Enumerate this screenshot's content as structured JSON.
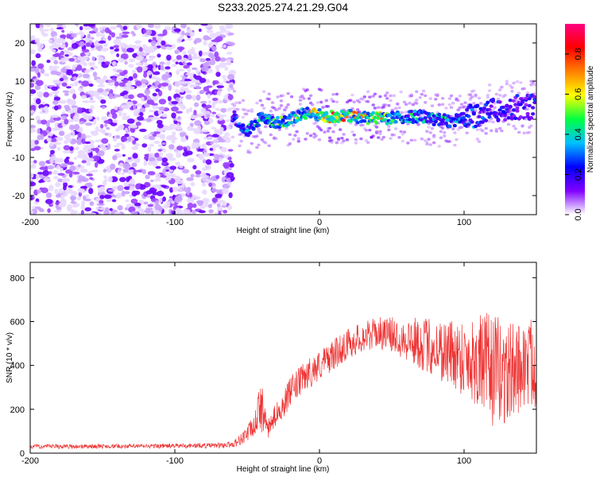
{
  "title": "S233.2025.274.21.29.G04",
  "chart_data": [
    {
      "type": "heatmap",
      "name": "spectrogram",
      "xlabel": "Height of straight line (km)",
      "ylabel": "Frequency (Hz)",
      "xlim": [
        -200,
        150
      ],
      "ylim": [
        -25,
        25
      ],
      "xticks": [
        -200,
        -100,
        0,
        100
      ],
      "yticks": [
        -20,
        -10,
        0,
        10,
        20
      ],
      "colorbar": {
        "label": "Normalized spectral amplitude",
        "range": [
          0.0,
          0.95
        ],
        "ticks": [
          0.0,
          0.2,
          0.4,
          0.6,
          0.8
        ],
        "colormap": [
          "#ffffff",
          "#8000ff",
          "#0000ff",
          "#00c0ff",
          "#00ff40",
          "#ffff00",
          "#ff8000",
          "#ff0000",
          "#ff0080"
        ]
      },
      "noise_region_x": [
        -200,
        -60
      ],
      "signal_track": {
        "x": [
          -60,
          -50,
          -40,
          -30,
          -20,
          -10,
          0,
          10,
          20,
          30,
          40,
          50,
          60,
          70,
          80,
          90,
          100,
          110,
          120,
          130,
          140,
          150
        ],
        "frequency": [
          1.0,
          -3.0,
          0.5,
          -1.0,
          0.0,
          1.5,
          1.0,
          0.8,
          0.8,
          0.5,
          0.2,
          0.3,
          0.5,
          0.8,
          0.0,
          -0.5,
          0.3,
          1.0,
          2.5,
          3.0,
          3.0,
          3.5
        ],
        "peak_amplitude": [
          0.3,
          0.45,
          0.5,
          0.55,
          0.6,
          0.7,
          0.85,
          0.9,
          0.8,
          0.75,
          0.9,
          0.6,
          0.5,
          0.5,
          0.45,
          0.5,
          0.4,
          0.35,
          0.35,
          0.3,
          0.3,
          0.3
        ]
      }
    },
    {
      "type": "line",
      "name": "snr",
      "xlabel": "Height of straight line (km)",
      "ylabel": "SNR (10 * v/v)",
      "xlim": [
        -200,
        150
      ],
      "ylim": [
        0,
        870
      ],
      "xticks": [
        -200,
        -100,
        0,
        100
      ],
      "yticks": [
        0,
        200,
        400,
        600,
        800
      ],
      "color": "#ee3333",
      "envelope": {
        "x": [
          -200,
          -120,
          -70,
          -60,
          -55,
          -50,
          -45,
          -42,
          -40,
          -38,
          -35,
          -30,
          -25,
          -20,
          -10,
          0,
          10,
          20,
          30,
          40,
          50,
          60,
          70,
          80,
          90,
          100,
          110,
          120,
          130,
          140,
          150
        ],
        "mean": [
          30,
          32,
          35,
          40,
          60,
          90,
          120,
          200,
          240,
          150,
          110,
          180,
          220,
          280,
          350,
          400,
          450,
          500,
          530,
          550,
          540,
          520,
          500,
          480,
          460,
          440,
          420,
          380,
          360,
          400,
          420
        ],
        "spread": [
          10,
          10,
          12,
          15,
          25,
          40,
          50,
          80,
          150,
          60,
          50,
          50,
          60,
          70,
          70,
          70,
          70,
          70,
          70,
          70,
          80,
          100,
          120,
          140,
          160,
          180,
          220,
          260,
          240,
          200,
          220
        ]
      }
    }
  ]
}
